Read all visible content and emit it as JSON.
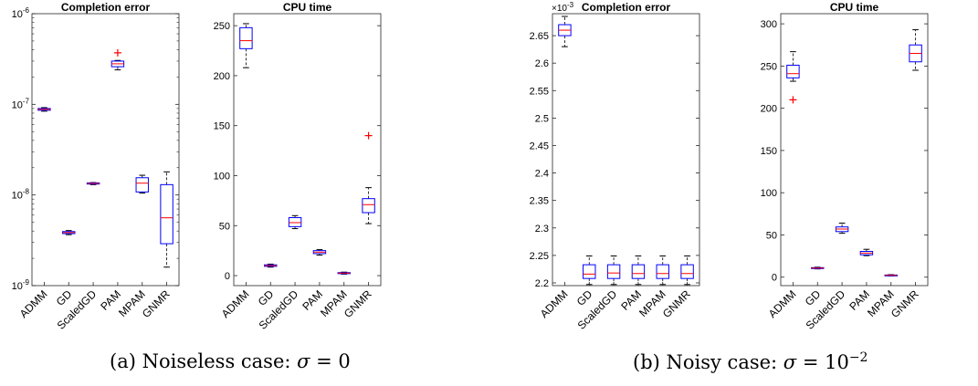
{
  "chart_data": [
    {
      "type": "box",
      "panel": "a-left",
      "title": "Completion error",
      "yscale": "log",
      "ylim": [
        1e-09,
        1e-06
      ],
      "yticks": [
        {
          "value": 1e-09,
          "base": "10",
          "exp": "-9"
        },
        {
          "value": 1e-08,
          "base": "10",
          "exp": "-8"
        },
        {
          "value": 1e-07,
          "base": "10",
          "exp": "-7"
        },
        {
          "value": 1e-06,
          "base": "10",
          "exp": "-6"
        }
      ],
      "categories": [
        "ADMM",
        "GD",
        "ScaledGD",
        "PAM",
        "MPAM",
        "GNMR"
      ],
      "boxes": [
        {
          "min": 8.4e-08,
          "q1": 8.6e-08,
          "median": 8.8e-08,
          "q3": 9e-08,
          "max": 9.2e-08,
          "outliers": []
        },
        {
          "min": 3.65e-09,
          "q1": 3.75e-09,
          "median": 3.85e-09,
          "q3": 3.95e-09,
          "max": 4.05e-09,
          "outliers": []
        },
        {
          "min": 1.3e-08,
          "q1": 1.32e-08,
          "median": 1.34e-08,
          "q3": 1.36e-08,
          "max": 1.37e-08,
          "outliers": []
        },
        {
          "min": 2.4e-07,
          "q1": 2.6e-07,
          "median": 2.8e-07,
          "q3": 3e-07,
          "max": 3.05e-07,
          "outliers": [
            3.7e-07
          ]
        },
        {
          "min": 1.05e-08,
          "q1": 1.08e-08,
          "median": 1.35e-08,
          "q3": 1.55e-08,
          "max": 1.65e-08,
          "outliers": []
        },
        {
          "min": 1.6e-09,
          "q1": 2.9e-09,
          "median": 5.6e-09,
          "q3": 1.3e-08,
          "max": 1.8e-08,
          "outliers": []
        }
      ]
    },
    {
      "type": "box",
      "panel": "a-right",
      "title": "CPU time",
      "yscale": "linear",
      "ylim": [
        -10,
        262
      ],
      "yticks": [
        0,
        50,
        100,
        150,
        200,
        250
      ],
      "categories": [
        "ADMM",
        "GD",
        "ScaledGD",
        "PAM",
        "MPAM",
        "GNMR"
      ],
      "boxes": [
        {
          "min": 208,
          "q1": 227,
          "median": 235,
          "q3": 248,
          "max": 252,
          "outliers": []
        },
        {
          "min": 8.5,
          "q1": 9.3,
          "median": 10,
          "q3": 10.8,
          "max": 11.5,
          "outliers": []
        },
        {
          "min": 47,
          "q1": 49,
          "median": 53,
          "q3": 58,
          "max": 60,
          "outliers": []
        },
        {
          "min": 20.5,
          "q1": 22,
          "median": 23.5,
          "q3": 25,
          "max": 26,
          "outliers": []
        },
        {
          "min": 1.5,
          "q1": 2,
          "median": 2.5,
          "q3": 3,
          "max": 3.5,
          "outliers": []
        },
        {
          "min": 52,
          "q1": 63,
          "median": 71,
          "q3": 77,
          "max": 88,
          "outliers": [
            140
          ]
        }
      ]
    },
    {
      "type": "box",
      "panel": "b-left",
      "title": "Completion error",
      "yscale": "linear",
      "ylim": [
        2.195,
        2.69
      ],
      "yticks": [
        2.2,
        2.25,
        2.3,
        2.35,
        2.4,
        2.45,
        2.5,
        2.55,
        2.6,
        2.65
      ],
      "ytick_labels": [
        "2.2",
        "2.25",
        "2.3",
        "2.35",
        "2.4",
        "2.45",
        "2.5",
        "2.55",
        "2.6",
        "2.65"
      ],
      "multiplier": {
        "base": "×10",
        "exp": "-3"
      },
      "categories": [
        "ADMM",
        "GD",
        "ScaledGD",
        "PAM",
        "MPAM",
        "GNMR"
      ],
      "boxes": [
        {
          "min": 2.63,
          "q1": 2.65,
          "median": 2.66,
          "q3": 2.67,
          "max": 2.685,
          "outliers": []
        },
        {
          "min": 2.197,
          "q1": 2.208,
          "median": 2.216,
          "q3": 2.233,
          "max": 2.249,
          "outliers": []
        },
        {
          "min": 2.197,
          "q1": 2.208,
          "median": 2.218,
          "q3": 2.233,
          "max": 2.249,
          "outliers": []
        },
        {
          "min": 2.197,
          "q1": 2.208,
          "median": 2.217,
          "q3": 2.233,
          "max": 2.249,
          "outliers": []
        },
        {
          "min": 2.197,
          "q1": 2.208,
          "median": 2.217,
          "q3": 2.233,
          "max": 2.249,
          "outliers": []
        },
        {
          "min": 2.197,
          "q1": 2.208,
          "median": 2.217,
          "q3": 2.233,
          "max": 2.249,
          "outliers": []
        }
      ]
    },
    {
      "type": "box",
      "panel": "b-right",
      "title": "CPU time",
      "yscale": "linear",
      "ylim": [
        -10,
        312
      ],
      "yticks": [
        0,
        50,
        100,
        150,
        200,
        250,
        300
      ],
      "categories": [
        "ADMM",
        "GD",
        "ScaledGD",
        "PAM",
        "MPAM",
        "GNMR"
      ],
      "boxes": [
        {
          "min": 232,
          "q1": 236,
          "median": 241,
          "q3": 251,
          "max": 267,
          "outliers": [
            210
          ]
        },
        {
          "min": 9.8,
          "q1": 10.2,
          "median": 10.8,
          "q3": 11.3,
          "max": 11.8,
          "outliers": []
        },
        {
          "min": 52,
          "q1": 54,
          "median": 57,
          "q3": 59.5,
          "max": 64,
          "outliers": []
        },
        {
          "min": 25.5,
          "q1": 26.5,
          "median": 28.5,
          "q3": 30.5,
          "max": 33,
          "outliers": []
        },
        {
          "min": 1.5,
          "q1": 1.8,
          "median": 2.2,
          "q3": 2.6,
          "max": 3,
          "outliers": []
        },
        {
          "min": 245,
          "q1": 255,
          "median": 265,
          "q3": 275,
          "max": 293,
          "outliers": []
        }
      ]
    }
  ],
  "captions": {
    "a_prefix": "(a) Noiseless case: ",
    "a_symbol": "σ",
    "a_value": " = 0",
    "b_prefix": "(b) Noisy case: ",
    "b_symbol": "σ",
    "b_eq": " = 10",
    "b_exp": "−2"
  },
  "colors": {
    "box": "#0000ff",
    "median": "#ff0000",
    "outlier": "#ff0000",
    "whisker": "#000000"
  }
}
